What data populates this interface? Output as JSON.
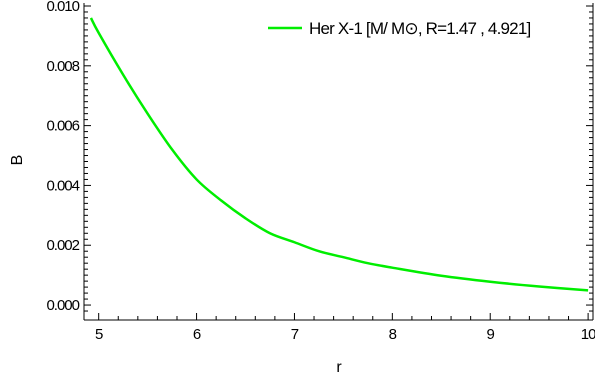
{
  "chart_data": {
    "type": "line",
    "xlabel": "r",
    "ylabel": "B",
    "xlim": [
      4.85,
      10.05
    ],
    "ylim": [
      -0.0005,
      0.0101
    ],
    "x_ticks": [
      5,
      6,
      7,
      8,
      9,
      10
    ],
    "x_tick_labels": [
      "5",
      "6",
      "7",
      "8",
      "9",
      "10"
    ],
    "y_ticks": [
      0.0,
      0.002,
      0.004,
      0.006,
      0.008,
      0.01
    ],
    "y_tick_labels": [
      "0.000",
      "0.002",
      "0.004",
      "0.006",
      "0.008",
      "0.010"
    ],
    "grid": false,
    "legend_position": "top-right",
    "series": [
      {
        "name": "Her X-1 [M/ M⊙, R=1.47 , 4.921]",
        "color": "#00ee00",
        "x": [
          4.921,
          5.0,
          5.25,
          5.5,
          5.75,
          6.0,
          6.25,
          6.5,
          6.75,
          7.0,
          7.25,
          7.5,
          7.75,
          8.0,
          8.5,
          9.0,
          9.5,
          10.0
        ],
        "y": [
          0.0096,
          0.0091,
          0.0077,
          0.0064,
          0.0052,
          0.0042,
          0.0035,
          0.0029,
          0.0024,
          0.0021,
          0.0018,
          0.0016,
          0.0014,
          0.00125,
          0.00098,
          0.00078,
          0.00062,
          0.00049
        ]
      }
    ]
  }
}
